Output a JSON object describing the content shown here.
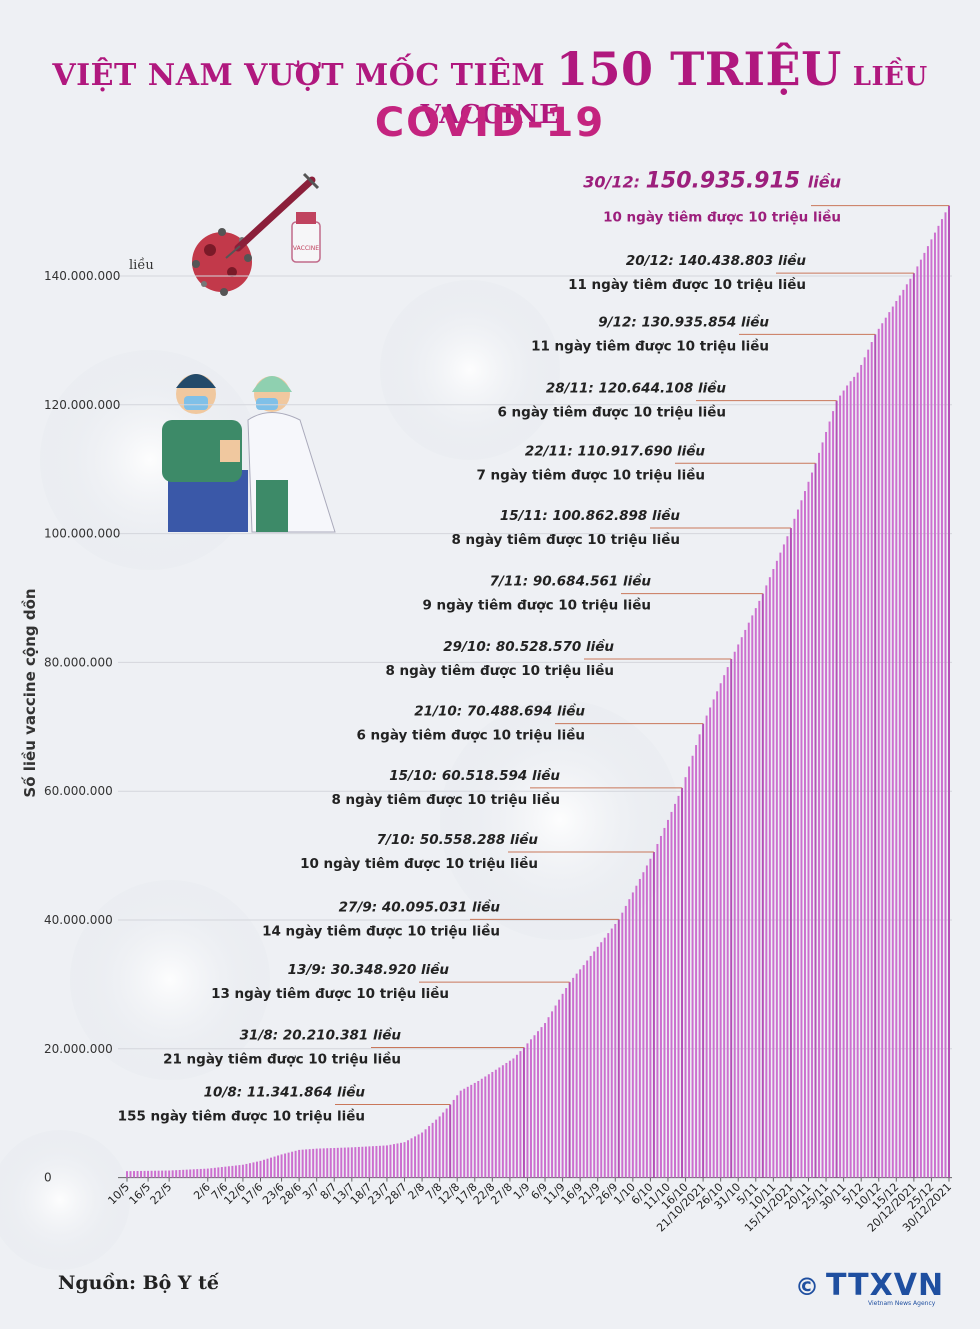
{
  "title": {
    "prefix": "VIỆT NAM VƯỢT MỐC TIÊM",
    "number": "150 TRIỆU",
    "suffix": "LIỀU VACCINE",
    "subtitle": "COVID-19"
  },
  "source": "Nguồn: Bộ Y tế",
  "logo": {
    "text": "TTXVN",
    "copyright": "©",
    "subtext": "Vietnam News Agency"
  },
  "illustration": {
    "vial_label": "VACCINE"
  },
  "colors": {
    "title": "#b0187e",
    "bars": "#cc6fcf",
    "annotation_line": "#c9775a",
    "highlight": "#9c1f7c"
  },
  "chart_data": {
    "type": "bar",
    "title": "VIỆT NAM VƯỢT MỐC TIÊM 150 TRIỆU LIỀU VACCINE COVID-19",
    "ylabel": "Số liều vaccine cộng dồn",
    "yunit": "liều",
    "ylim": [
      0,
      152000000
    ],
    "yticks": [
      0,
      20000000,
      40000000,
      60000000,
      80000000,
      100000000,
      120000000,
      140000000
    ],
    "ytick_labels": [
      "0",
      "20.000.000",
      "40.000.000",
      "60.000.000",
      "80.000.000",
      "100.000.000",
      "120.000.000",
      "140.000.000"
    ],
    "xticks": [
      {
        "label": "10/5",
        "day": 0
      },
      {
        "label": "16/5",
        "day": 6
      },
      {
        "label": "22/5",
        "day": 12
      },
      {
        "label": "2/6",
        "day": 23
      },
      {
        "label": "7/6",
        "day": 28
      },
      {
        "label": "12/6",
        "day": 33
      },
      {
        "label": "17/6",
        "day": 38
      },
      {
        "label": "23/6",
        "day": 44
      },
      {
        "label": "28/6",
        "day": 49
      },
      {
        "label": "3/7",
        "day": 54
      },
      {
        "label": "8/7",
        "day": 59
      },
      {
        "label": "13/7",
        "day": 64
      },
      {
        "label": "18/7",
        "day": 69
      },
      {
        "label": "23/7",
        "day": 74
      },
      {
        "label": "28/7",
        "day": 79
      },
      {
        "label": "2/8",
        "day": 84
      },
      {
        "label": "7/8",
        "day": 89
      },
      {
        "label": "12/8",
        "day": 94
      },
      {
        "label": "17/8",
        "day": 99
      },
      {
        "label": "22/8",
        "day": 104
      },
      {
        "label": "27/8",
        "day": 109
      },
      {
        "label": "1/9",
        "day": 114
      },
      {
        "label": "6/9",
        "day": 119
      },
      {
        "label": "11/9",
        "day": 124
      },
      {
        "label": "16/9",
        "day": 129
      },
      {
        "label": "21/9",
        "day": 134
      },
      {
        "label": "26/9",
        "day": 139
      },
      {
        "label": "1/10",
        "day": 144
      },
      {
        "label": "6/10",
        "day": 149
      },
      {
        "label": "11/10",
        "day": 154
      },
      {
        "label": "16/10",
        "day": 159
      },
      {
        "label": "21/10/2021",
        "day": 164
      },
      {
        "label": "26/10",
        "day": 169
      },
      {
        "label": "31/10",
        "day": 174
      },
      {
        "label": "5/11",
        "day": 179
      },
      {
        "label": "10/11",
        "day": 184
      },
      {
        "label": "15/11/2021",
        "day": 189
      },
      {
        "label": "20/11",
        "day": 194
      },
      {
        "label": "25/11",
        "day": 199
      },
      {
        "label": "30/11",
        "day": 204
      },
      {
        "label": "5/12",
        "day": 209
      },
      {
        "label": "10/12",
        "day": 214
      },
      {
        "label": "15/12",
        "day": 219
      },
      {
        "label": "20/12/2021",
        "day": 224
      },
      {
        "label": "25/12",
        "day": 229
      },
      {
        "label": "30/12/2021",
        "day": 234
      }
    ],
    "anchors": [
      {
        "day": 0,
        "value": 1000000
      },
      {
        "day": 12,
        "value": 1100000
      },
      {
        "day": 23,
        "value": 1400000
      },
      {
        "day": 33,
        "value": 2000000
      },
      {
        "day": 38,
        "value": 2600000
      },
      {
        "day": 44,
        "value": 3600000
      },
      {
        "day": 49,
        "value": 4300000
      },
      {
        "day": 54,
        "value": 4500000
      },
      {
        "day": 64,
        "value": 4700000
      },
      {
        "day": 74,
        "value": 5000000
      },
      {
        "day": 79,
        "value": 5500000
      },
      {
        "day": 84,
        "value": 7000000
      },
      {
        "day": 89,
        "value": 9500000
      },
      {
        "day": 92,
        "value": 11341864
      },
      {
        "day": 95,
        "value": 13500000
      },
      {
        "day": 100,
        "value": 15000000
      },
      {
        "day": 110,
        "value": 18500000
      },
      {
        "day": 113,
        "value": 20210381
      },
      {
        "day": 119,
        "value": 24000000
      },
      {
        "day": 126,
        "value": 30348920
      },
      {
        "day": 130,
        "value": 33000000
      },
      {
        "day": 140,
        "value": 40095031
      },
      {
        "day": 150,
        "value": 50558288
      },
      {
        "day": 158,
        "value": 60518594
      },
      {
        "day": 164,
        "value": 70488694
      },
      {
        "day": 172,
        "value": 80528570
      },
      {
        "day": 181,
        "value": 90684561
      },
      {
        "day": 189,
        "value": 100862898
      },
      {
        "day": 196,
        "value": 110917690
      },
      {
        "day": 202,
        "value": 120644108
      },
      {
        "day": 205,
        "value": 123000000
      },
      {
        "day": 208,
        "value": 125000000
      },
      {
        "day": 213,
        "value": 130935854
      },
      {
        "day": 224,
        "value": 140438803
      },
      {
        "day": 234,
        "value": 150935915
      }
    ],
    "milestones": [
      {
        "date": "10/8",
        "value": "11.341.864",
        "day": 92,
        "num": 11341864,
        "note": "155 ngày tiêm được 10 triệu liều"
      },
      {
        "date": "31/8",
        "value": "20.210.381",
        "day": 113,
        "num": 20210381,
        "note": "21 ngày tiêm được 10 triệu liều"
      },
      {
        "date": "13/9",
        "value": "30.348.920",
        "day": 126,
        "num": 30348920,
        "note": "13 ngày tiêm được 10 triệu liều"
      },
      {
        "date": "27/9",
        "value": "40.095.031",
        "day": 140,
        "num": 40095031,
        "note": "14 ngày tiêm được 10 triệu liều"
      },
      {
        "date": "7/10",
        "value": "50.558.288",
        "day": 150,
        "num": 50558288,
        "note": "10 ngày tiêm được 10 triệu liều"
      },
      {
        "date": "15/10",
        "value": "60.518.594",
        "day": 158,
        "num": 60518594,
        "note": "8 ngày tiêm được 10 triệu liều"
      },
      {
        "date": "21/10",
        "value": "70.488.694",
        "day": 164,
        "num": 70488694,
        "note": "6 ngày tiêm được 10 triệu liều"
      },
      {
        "date": "29/10",
        "value": "80.528.570",
        "day": 172,
        "num": 80528570,
        "note": "8 ngày tiêm được 10 triệu liều"
      },
      {
        "date": "7/11",
        "value": "90.684.561",
        "day": 181,
        "num": 90684561,
        "note": "9 ngày tiêm được 10 triệu liều"
      },
      {
        "date": "15/11",
        "value": "100.862.898",
        "day": 189,
        "num": 100862898,
        "note": "8 ngày tiêm được 10 triệu liều"
      },
      {
        "date": "22/11",
        "value": "110.917.690",
        "day": 196,
        "num": 110917690,
        "note": "7 ngày tiêm được 10 triệu liều"
      },
      {
        "date": "28/11",
        "value": "120.644.108",
        "day": 202,
        "num": 120644108,
        "note": "6 ngày tiêm được 10 triệu liều"
      },
      {
        "date": "9/12",
        "value": "130.935.854",
        "day": 213,
        "num": 130935854,
        "note": "11 ngày tiêm được 10 triệu liều"
      },
      {
        "date": "20/12",
        "value": "140.438.803",
        "day": 224,
        "num": 140438803,
        "note": "11 ngày tiêm được 10 triệu liều"
      },
      {
        "date": "30/12",
        "value": "150.935.915",
        "day": 234,
        "num": 150935915,
        "note": "10 ngày tiêm được 10 triệu liều",
        "highlight": true
      }
    ]
  }
}
